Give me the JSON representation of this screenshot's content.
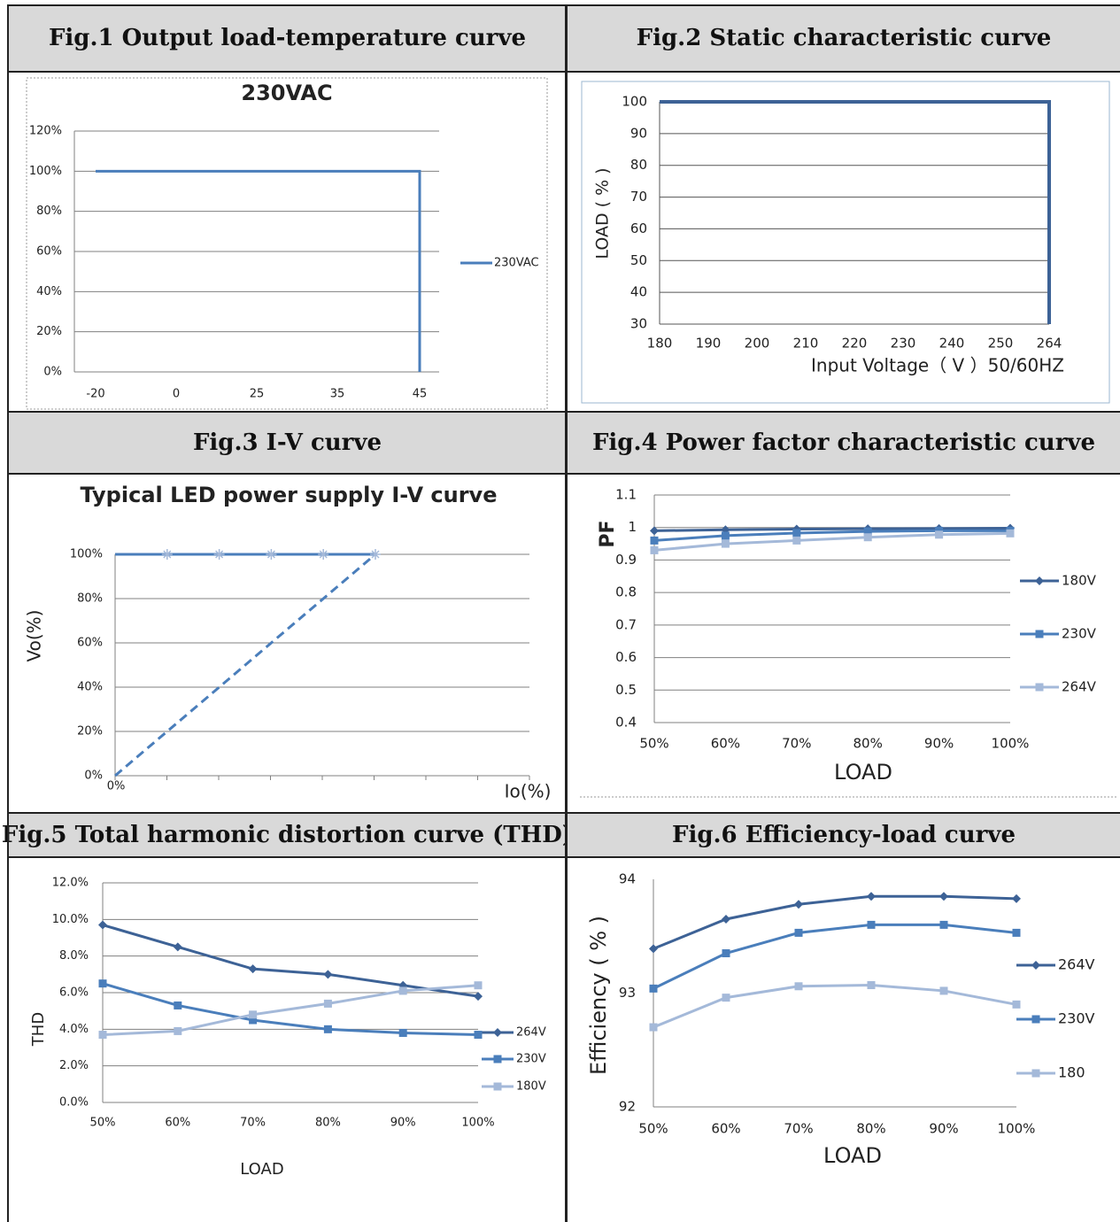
{
  "colors": {
    "header_bg": "#d9d9d9",
    "series_dark": "#3d6296",
    "series_mid": "#4a7ebb",
    "series_light": "#a4b9d9",
    "grid": "#808080"
  },
  "headers": {
    "fig1": "Fig.1 Output load-temperature curve",
    "fig2": "Fig.2 Static characteristic curve",
    "fig3": "Fig.3 I-V curve",
    "fig4": "Fig.4 Power factor characteristic curve",
    "fig5": "Fig.5 Total harmonic distortion curve (THD)",
    "fig6": "Fig.6 Efficiency-load curve"
  },
  "chart_data": [
    {
      "id": "fig1",
      "type": "line",
      "title": "230VAC",
      "xlabel": "",
      "ylabel": "",
      "x_ticks": [
        "-20",
        "0",
        "25",
        "35",
        "45"
      ],
      "y_ticks": [
        "0%",
        "20%",
        "40%",
        "60%",
        "80%",
        "100%",
        "120%"
      ],
      "ylim": [
        0,
        120
      ],
      "grid": true,
      "legend": "right",
      "series": [
        {
          "name": "230VAC",
          "points": [
            [
              "-20",
              100
            ],
            [
              "45",
              100
            ],
            [
              "45",
              0
            ]
          ]
        }
      ]
    },
    {
      "id": "fig2",
      "type": "line",
      "title": "",
      "xlabel": "Input Voltage（ V ）50/60HZ",
      "ylabel": "LOAD ( % )",
      "x_ticks": [
        "180",
        "190",
        "200",
        "210",
        "220",
        "230",
        "240",
        "250",
        "264"
      ],
      "y_ticks": [
        "30",
        "40",
        "50",
        "60",
        "70",
        "80",
        "90",
        "100"
      ],
      "ylim": [
        30,
        100
      ],
      "grid": true,
      "legend": "none",
      "series": [
        {
          "points": [
            [
              "180",
              100
            ],
            [
              "264",
              100
            ],
            [
              "264",
              30
            ]
          ]
        }
      ]
    },
    {
      "id": "fig3",
      "type": "line",
      "title": "Typical LED power supply I-V curve",
      "xlabel": "Io(%)",
      "ylabel": "Vo(%)",
      "x_origin_label": "0%",
      "y_ticks": [
        "0%",
        "20%",
        "40%",
        "60%",
        "80%",
        "100%"
      ],
      "ylim": [
        0,
        100
      ],
      "grid": true,
      "legend": "none",
      "series": [
        {
          "style": "solid",
          "points": [
            [
              0,
              100
            ],
            [
              100,
              100
            ]
          ]
        },
        {
          "style": "dashed",
          "points": [
            [
              0,
              0
            ],
            [
              100,
              100
            ]
          ]
        },
        {
          "style": "markers",
          "points": [
            [
              20,
              100
            ],
            [
              40,
              100
            ],
            [
              60,
              100
            ],
            [
              80,
              100
            ],
            [
              100,
              100
            ]
          ]
        }
      ]
    },
    {
      "id": "fig4",
      "type": "line",
      "title": "",
      "xlabel": "LOAD",
      "ylabel": "PF",
      "categories": [
        "50%",
        "60%",
        "70%",
        "80%",
        "90%",
        "100%"
      ],
      "y_ticks": [
        "0.4",
        "0.5",
        "0.6",
        "0.7",
        "0.8",
        "0.9",
        "1",
        "1.1"
      ],
      "ylim": [
        0.4,
        1.1
      ],
      "grid": true,
      "legend": "right",
      "series": [
        {
          "name": "180V",
          "values": [
            0.99,
            0.993,
            0.995,
            0.996,
            0.997,
            0.998
          ]
        },
        {
          "name": "230V",
          "values": [
            0.96,
            0.975,
            0.983,
            0.988,
            0.99,
            0.99
          ]
        },
        {
          "name": "264V",
          "values": [
            0.93,
            0.95,
            0.96,
            0.97,
            0.978,
            0.982
          ]
        }
      ]
    },
    {
      "id": "fig5",
      "type": "line",
      "title": "",
      "xlabel": "LOAD",
      "ylabel": "THD",
      "categories": [
        "50%",
        "60%",
        "70%",
        "80%",
        "90%",
        "100%"
      ],
      "y_ticks": [
        "0.0%",
        "2.0%",
        "4.0%",
        "6.0%",
        "8.0%",
        "10.0%",
        "12.0%"
      ],
      "ylim": [
        0,
        12
      ],
      "grid": true,
      "legend": "right",
      "series": [
        {
          "name": "264V",
          "values": [
            9.7,
            8.5,
            7.3,
            7.0,
            6.4,
            5.8
          ]
        },
        {
          "name": "230V",
          "values": [
            6.5,
            5.3,
            4.5,
            4.0,
            3.8,
            3.7
          ]
        },
        {
          "name": "180V",
          "values": [
            3.7,
            3.9,
            4.8,
            5.4,
            6.1,
            6.4
          ]
        }
      ]
    },
    {
      "id": "fig6",
      "type": "line",
      "title": "",
      "xlabel": "LOAD",
      "ylabel": "Efficiency ( % )",
      "categories": [
        "50%",
        "60%",
        "70%",
        "80%",
        "90%",
        "100%"
      ],
      "y_ticks": [
        "92",
        "93",
        "94"
      ],
      "ylim": [
        92,
        94
      ],
      "grid": false,
      "legend": "right",
      "series": [
        {
          "name": "264V",
          "values": [
            93.39,
            93.65,
            93.78,
            93.85,
            93.85,
            93.83
          ]
        },
        {
          "name": "230V",
          "values": [
            93.04,
            93.35,
            93.53,
            93.6,
            93.6,
            93.53
          ]
        },
        {
          "name": "180",
          "values": [
            92.7,
            92.96,
            93.06,
            93.07,
            93.02,
            92.9
          ]
        }
      ]
    }
  ]
}
